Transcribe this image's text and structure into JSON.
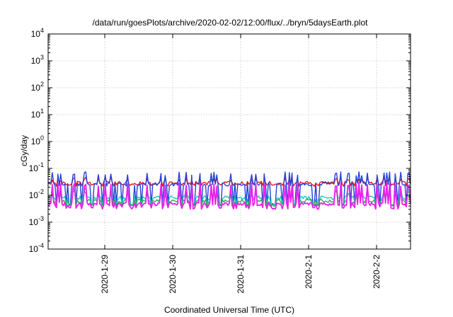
{
  "chart_data": {
    "type": "line",
    "title": "/data/run/goesPlots/archive/2020-02-02/12:00/flux/../bryn/5daysEarth.plot",
    "xlabel": "Coordinated Universal Time (UTC)",
    "ylabel": "cGy/day",
    "yscale": "log",
    "ylim": [
      0.0001,
      10000
    ],
    "xlim": [
      "2020-01-28T04:00",
      "2020-02-02T12:00"
    ],
    "grid": true,
    "y_ticks": [
      {
        "base": "10",
        "exp": "4"
      },
      {
        "base": "10",
        "exp": "3"
      },
      {
        "base": "10",
        "exp": "2"
      },
      {
        "base": "10",
        "exp": "1"
      },
      {
        "base": "10",
        "exp": "0"
      },
      {
        "base": "10",
        "exp": "-1"
      },
      {
        "base": "10",
        "exp": "-2"
      },
      {
        "base": "10",
        "exp": "-3"
      },
      {
        "base": "10",
        "exp": "-4"
      }
    ],
    "x_ticks": [
      "2020-1-29",
      "2020-1-30",
      "2020-1-31",
      "2020-2-1",
      "2020-2-2"
    ],
    "series": [
      {
        "color": "#e8191a",
        "base": 0.029,
        "spike": 0.048,
        "dip": 0.024
      },
      {
        "color": "#2342d8",
        "base": 0.026,
        "spike": 0.075,
        "dip": 0.0045
      },
      {
        "color": "#17c9b8",
        "base": 0.0082,
        "spike": 0.02,
        "dip": 0.0045
      },
      {
        "color": "#2ca85a",
        "base": 0.0062,
        "spike": 0.015,
        "dip": 0.0042
      },
      {
        "color": "#ef1cef",
        "base": 0.0048,
        "spike": 0.03,
        "dip": 0.0034
      }
    ]
  }
}
